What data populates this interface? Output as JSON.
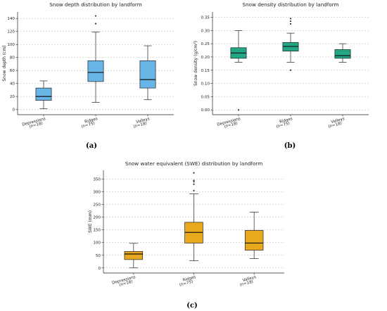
{
  "chart_data": [
    {
      "type": "box",
      "panel_label": "(a)",
      "title": "Snow depth distribution by landform",
      "xlabel": "",
      "ylabel": "Snow depth (cm)",
      "ylim": [
        -8,
        150
      ],
      "yticks": [
        0,
        20,
        40,
        60,
        80,
        100,
        120,
        140
      ],
      "ytick_labels": [
        "0",
        "20",
        "40",
        "60",
        "80",
        "100",
        "120",
        "140"
      ],
      "grid": "y-dashed",
      "color": "#6ab5e8",
      "categories": [
        "Depressions",
        "Ridges",
        "Valleys"
      ],
      "category_counts": [
        "(n=18)",
        "(n=75)",
        "(n=18)"
      ],
      "boxes": [
        {
          "whislo": 1,
          "q1": 14,
          "med": 20,
          "q3": 33,
          "whishi": 44,
          "fliers": []
        },
        {
          "whislo": 11,
          "q1": 43,
          "med": 57,
          "q3": 75,
          "whishi": 119,
          "fliers": [
            132,
            144
          ]
        },
        {
          "whislo": 15,
          "q1": 33,
          "med": 46,
          "q3": 75,
          "whishi": 98,
          "fliers": []
        }
      ]
    },
    {
      "type": "box",
      "panel_label": "(b)",
      "title": "Snow density distribution by landform",
      "xlabel": "",
      "ylabel": "Snow density (g/cm³)",
      "ylim": [
        -0.018,
        0.37
      ],
      "yticks": [
        0.0,
        0.05,
        0.1,
        0.15,
        0.2,
        0.25,
        0.3,
        0.35
      ],
      "ytick_labels": [
        "0.00",
        "0.05",
        "0.10",
        "0.15",
        "0.20",
        "0.25",
        "0.30",
        "0.35"
      ],
      "grid": "y-dashed",
      "color": "#22a784",
      "categories": [
        "Depressions",
        "Ridges",
        "Valleys"
      ],
      "category_counts": [
        "(n=18)",
        "(n=75)",
        "(n=18)"
      ],
      "boxes": [
        {
          "whislo": 0.18,
          "q1": 0.195,
          "med": 0.215,
          "q3": 0.235,
          "whishi": 0.3,
          "fliers": [
            0.0
          ]
        },
        {
          "whislo": 0.18,
          "q1": 0.222,
          "med": 0.24,
          "q3": 0.255,
          "whishi": 0.29,
          "fliers": [
            0.15,
            0.325,
            0.335,
            0.345
          ]
        },
        {
          "whislo": 0.18,
          "q1": 0.195,
          "med": 0.205,
          "q3": 0.228,
          "whishi": 0.25,
          "fliers": []
        }
      ]
    },
    {
      "type": "box",
      "panel_label": "(c)",
      "title": "Snow water equivalent (SWE) distribution by landform",
      "xlabel": "",
      "ylabel": "SWE (mm)",
      "ylim": [
        -20,
        385
      ],
      "yticks": [
        0,
        50,
        100,
        150,
        200,
        250,
        300,
        350
      ],
      "ytick_labels": [
        "0",
        "50",
        "100",
        "150",
        "200",
        "250",
        "300",
        "350"
      ],
      "grid": "y-dashed",
      "color": "#e8a91e",
      "categories": [
        "Depressions",
        "Ridges",
        "Valleys"
      ],
      "category_counts": [
        "(n=18)",
        "(n=75)",
        "(n=18)"
      ],
      "boxes": [
        {
          "whislo": 0,
          "q1": 33,
          "med": 55,
          "q3": 65,
          "whishi": 97,
          "fliers": []
        },
        {
          "whislo": 28,
          "q1": 98,
          "med": 140,
          "q3": 180,
          "whishi": 292,
          "fliers": [
            305,
            330,
            340,
            345,
            375
          ]
        },
        {
          "whislo": 37,
          "q1": 70,
          "med": 98,
          "q3": 148,
          "whishi": 220,
          "fliers": []
        }
      ]
    }
  ]
}
